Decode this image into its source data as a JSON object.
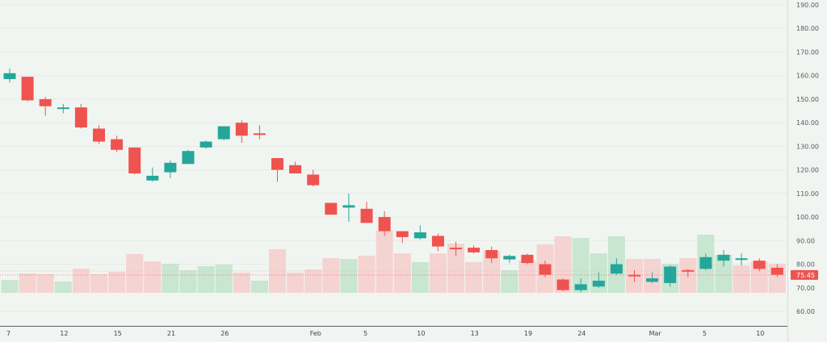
{
  "chart_data": {
    "type": "candlestick",
    "title": "",
    "xlabel": "",
    "ylabel": "",
    "ylim": [
      55,
      192
    ],
    "grid": true,
    "y_ticks": [
      "190.00",
      "180.00",
      "170.00",
      "160.00",
      "150.00",
      "140.00",
      "130.00",
      "120.00",
      "110.00",
      "100.00",
      "90.00",
      "80.00",
      "70.00",
      "60.00"
    ],
    "x_ticks": [
      {
        "label": "7",
        "index": 0
      },
      {
        "label": "12",
        "index": 3
      },
      {
        "label": "15",
        "index": 6
      },
      {
        "label": "21",
        "index": 9
      },
      {
        "label": "26",
        "index": 12
      },
      {
        "label": "Feb",
        "index": 17
      },
      {
        "label": "5",
        "index": 20
      },
      {
        "label": "10",
        "index": 23
      },
      {
        "label": "13",
        "index": 26
      },
      {
        "label": "19",
        "index": 29
      },
      {
        "label": "24",
        "index": 32
      },
      {
        "label": "Mar",
        "index": 36
      },
      {
        "label": "5",
        "index": 39
      },
      {
        "label": "10",
        "index": 42
      }
    ],
    "last_price": "75.45",
    "last_price_value": 75.45,
    "colors": {
      "up": "#26a69a",
      "down": "#ef5350",
      "up_volume": "#c8e6d0",
      "down_volume": "#f5d3d1",
      "price_tag_bg": "#ef5350",
      "background": "#f1f5f1"
    },
    "candles": [
      {
        "o": 158.5,
        "h": 163.0,
        "l": 157.0,
        "c": 161.0
      },
      {
        "o": 159.5,
        "h": 159.5,
        "l": 149.0,
        "c": 149.5
      },
      {
        "o": 150.0,
        "h": 151.0,
        "l": 143.0,
        "c": 147.0
      },
      {
        "o": 146.0,
        "h": 148.0,
        "l": 144.0,
        "c": 146.5
      },
      {
        "o": 146.5,
        "h": 148.0,
        "l": 137.5,
        "c": 138.0
      },
      {
        "o": 137.5,
        "h": 139.0,
        "l": 131.0,
        "c": 132.0
      },
      {
        "o": 133.0,
        "h": 134.5,
        "l": 127.5,
        "c": 128.5
      },
      {
        "o": 129.5,
        "h": 129.5,
        "l": 118.0,
        "c": 118.5
      },
      {
        "o": 115.5,
        "h": 121.0,
        "l": 115.0,
        "c": 117.5
      },
      {
        "o": 119.0,
        "h": 124.0,
        "l": 116.5,
        "c": 123.0
      },
      {
        "o": 122.5,
        "h": 128.5,
        "l": 122.5,
        "c": 128.0
      },
      {
        "o": 129.5,
        "h": 132.5,
        "l": 129.0,
        "c": 132.0
      },
      {
        "o": 133.0,
        "h": 138.5,
        "l": 132.5,
        "c": 138.5
      },
      {
        "o": 140.0,
        "h": 141.0,
        "l": 131.5,
        "c": 134.5
      },
      {
        "o": 135.5,
        "h": 139.0,
        "l": 133.0,
        "c": 135.0
      },
      {
        "o": 125.0,
        "h": 125.0,
        "l": 115.0,
        "c": 120.0
      },
      {
        "o": 122.0,
        "h": 123.5,
        "l": 118.5,
        "c": 118.5
      },
      {
        "o": 118.0,
        "h": 120.0,
        "l": 113.0,
        "c": 113.5
      },
      {
        "o": 106.0,
        "h": 106.0,
        "l": 101.0,
        "c": 101.0
      },
      {
        "o": 104.0,
        "h": 110.0,
        "l": 98.0,
        "c": 105.0
      },
      {
        "o": 103.5,
        "h": 106.5,
        "l": 97.5,
        "c": 97.5
      },
      {
        "o": 100.0,
        "h": 102.5,
        "l": 92.0,
        "c": 94.0
      },
      {
        "o": 94.0,
        "h": 94.0,
        "l": 89.0,
        "c": 91.5
      },
      {
        "o": 91.0,
        "h": 96.5,
        "l": 90.5,
        "c": 93.5
      },
      {
        "o": 92.0,
        "h": 93.0,
        "l": 85.5,
        "c": 87.5
      },
      {
        "o": 87.0,
        "h": 89.5,
        "l": 83.5,
        "c": 86.5
      },
      {
        "o": 87.0,
        "h": 88.0,
        "l": 84.5,
        "c": 85.0
      },
      {
        "o": 86.0,
        "h": 87.5,
        "l": 80.5,
        "c": 82.5
      },
      {
        "o": 82.0,
        "h": 84.0,
        "l": 80.5,
        "c": 83.5
      },
      {
        "o": 84.0,
        "h": 84.5,
        "l": 80.0,
        "c": 80.5
      },
      {
        "o": 80.0,
        "h": 81.5,
        "l": 74.5,
        "c": 75.5
      },
      {
        "o": 73.5,
        "h": 74.0,
        "l": 68.5,
        "c": 69.0
      },
      {
        "o": 69.0,
        "h": 74.0,
        "l": 68.0,
        "c": 71.5
      },
      {
        "o": 70.5,
        "h": 76.5,
        "l": 70.0,
        "c": 73.0
      },
      {
        "o": 76.0,
        "h": 82.5,
        "l": 75.5,
        "c": 80.0
      },
      {
        "o": 75.5,
        "h": 77.5,
        "l": 72.5,
        "c": 75.0
      },
      {
        "o": 72.5,
        "h": 76.5,
        "l": 72.0,
        "c": 74.0
      },
      {
        "o": 72.0,
        "h": 79.5,
        "l": 70.5,
        "c": 79.0
      },
      {
        "o": 77.5,
        "h": 78.0,
        "l": 74.5,
        "c": 77.0
      },
      {
        "o": 78.0,
        "h": 84.5,
        "l": 77.5,
        "c": 83.0
      },
      {
        "o": 81.5,
        "h": 86.0,
        "l": 79.0,
        "c": 84.0
      },
      {
        "o": 82.5,
        "h": 84.5,
        "l": 79.5,
        "c": 82.5
      },
      {
        "o": 81.5,
        "h": 82.5,
        "l": 77.0,
        "c": 78.0
      },
      {
        "o": 78.5,
        "h": 80.0,
        "l": 74.5,
        "c": 75.5
      }
    ],
    "volume": [
      {
        "v": 16,
        "up": true
      },
      {
        "v": 24,
        "up": false
      },
      {
        "v": 23,
        "up": false
      },
      {
        "v": 14,
        "up": true
      },
      {
        "v": 30,
        "up": false
      },
      {
        "v": 23,
        "up": false
      },
      {
        "v": 26,
        "up": false
      },
      {
        "v": 48,
        "up": false
      },
      {
        "v": 39,
        "up": false
      },
      {
        "v": 36,
        "up": true
      },
      {
        "v": 28,
        "up": true
      },
      {
        "v": 33,
        "up": true
      },
      {
        "v": 35,
        "up": true
      },
      {
        "v": 25,
        "up": false
      },
      {
        "v": 15,
        "up": true
      },
      {
        "v": 54,
        "up": false
      },
      {
        "v": 25,
        "up": false
      },
      {
        "v": 29,
        "up": false
      },
      {
        "v": 43,
        "up": false
      },
      {
        "v": 42,
        "up": true
      },
      {
        "v": 46,
        "up": false
      },
      {
        "v": 77,
        "up": false
      },
      {
        "v": 49,
        "up": false
      },
      {
        "v": 38,
        "up": true
      },
      {
        "v": 49,
        "up": false
      },
      {
        "v": 61,
        "up": false
      },
      {
        "v": 38,
        "up": false
      },
      {
        "v": 52,
        "up": false
      },
      {
        "v": 28,
        "up": true
      },
      {
        "v": 40,
        "up": false
      },
      {
        "v": 60,
        "up": false
      },
      {
        "v": 70,
        "up": false
      },
      {
        "v": 68,
        "up": true
      },
      {
        "v": 49,
        "up": true
      },
      {
        "v": 70,
        "up": true
      },
      {
        "v": 42,
        "up": false
      },
      {
        "v": 42,
        "up": false
      },
      {
        "v": 36,
        "up": true
      },
      {
        "v": 43,
        "up": false
      },
      {
        "v": 72,
        "up": true
      },
      {
        "v": 47,
        "up": true
      },
      {
        "v": 34,
        "up": false
      },
      {
        "v": 39,
        "up": false
      },
      {
        "v": 36,
        "up": false
      }
    ]
  }
}
